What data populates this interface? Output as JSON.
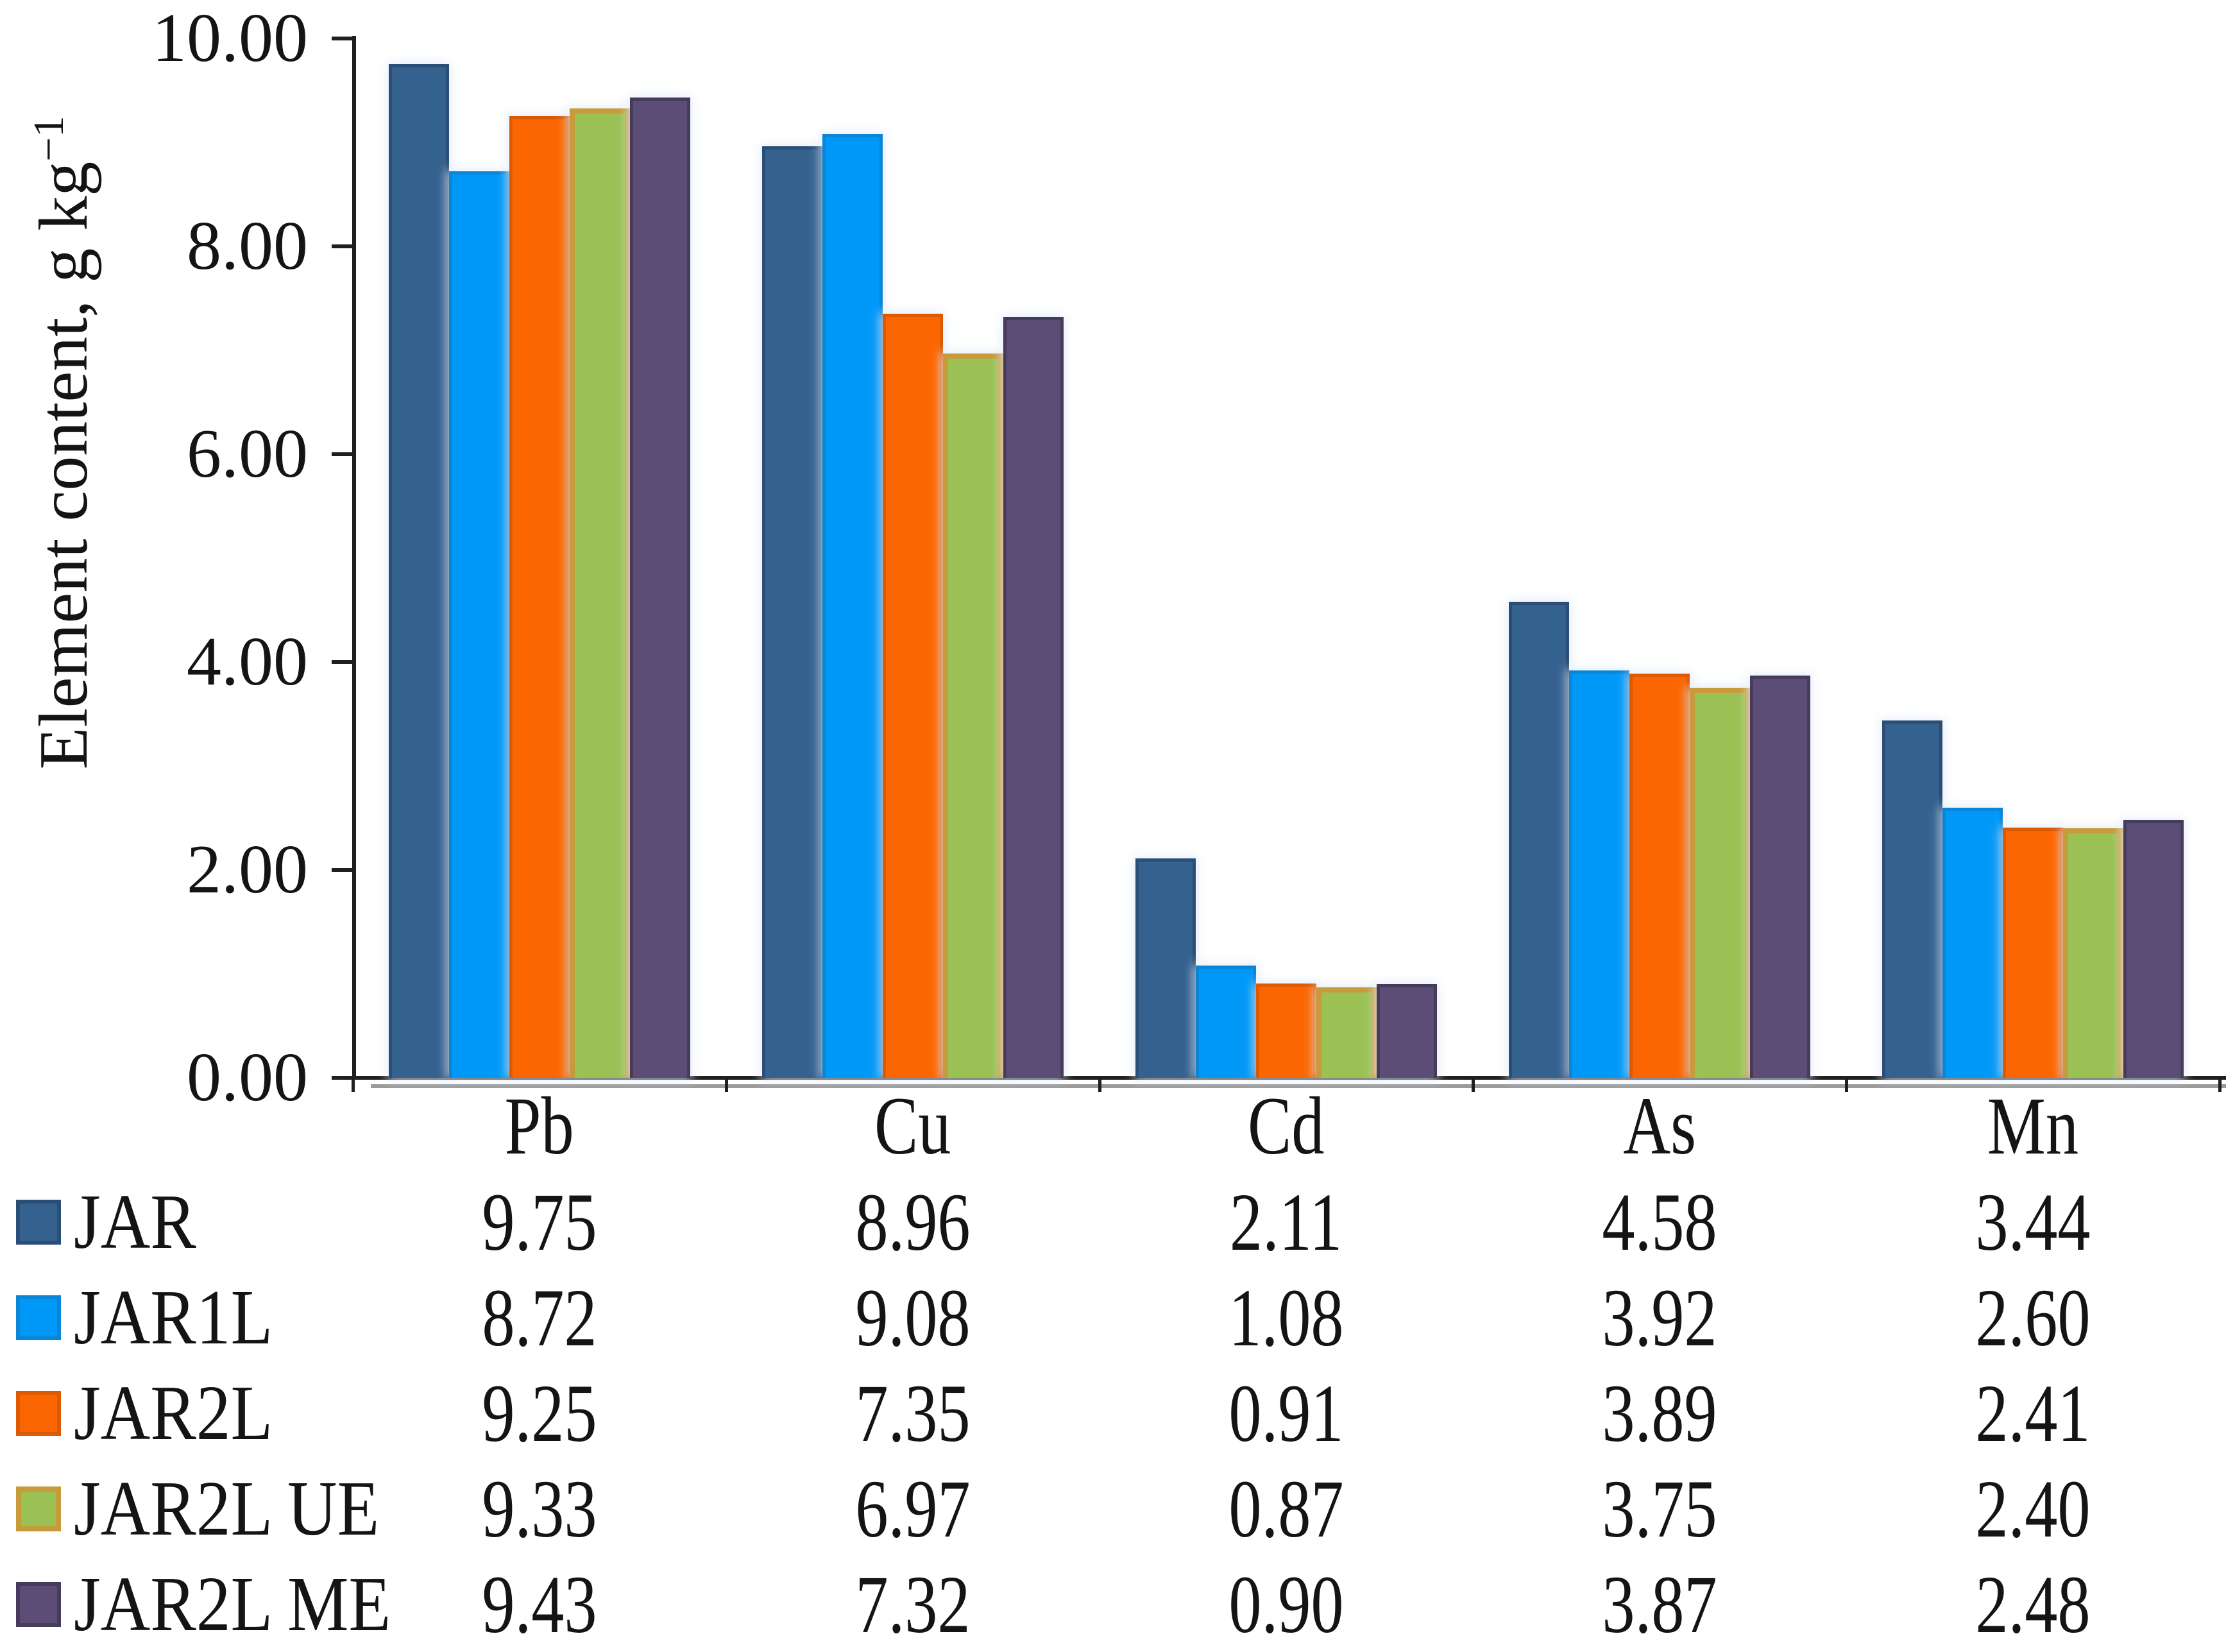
{
  "chart_data": {
    "type": "bar",
    "title": "",
    "y_axis_title": {
      "text": "Element content, g kg",
      "superscript": "−1"
    },
    "categories": [
      "Pb",
      "Cu",
      "Cd",
      "As",
      "Mn"
    ],
    "series": [
      {
        "name": "JAR",
        "fill": "#35618F",
        "border": "#2A4E75",
        "values": [
          9.75,
          8.96,
          2.11,
          4.58,
          3.44
        ],
        "display": [
          "9.75",
          "8.96",
          "2.11",
          "4.58",
          "3.44"
        ]
      },
      {
        "name": "JAR1L",
        "fill": "#0098F7",
        "border": "#0A85D8",
        "values": [
          8.72,
          9.08,
          1.08,
          3.92,
          2.6
        ],
        "display": [
          "8.72",
          "9.08",
          "1.08",
          "3.92",
          "2.60"
        ]
      },
      {
        "name": "JAR2L",
        "fill": "#FB6602",
        "border": "#DE5A02",
        "values": [
          9.25,
          7.35,
          0.91,
          3.89,
          2.41
        ],
        "display": [
          "9.25",
          "7.35",
          "0.91",
          "3.89",
          "2.41"
        ]
      },
      {
        "name": "JAR2L UE",
        "fill": "#9BC155",
        "border": "#C79A3B",
        "values": [
          9.33,
          6.97,
          0.87,
          3.75,
          2.4
        ],
        "display": [
          "9.33",
          "6.97",
          "0.87",
          "3.75",
          "2.40"
        ]
      },
      {
        "name": "JAR2L ME",
        "fill": "#5C4D76",
        "border": "#473B5D",
        "values": [
          9.43,
          7.32,
          0.9,
          3.87,
          2.48
        ],
        "display": [
          "9.43",
          "7.32",
          "0.90",
          "3.87",
          "2.48"
        ]
      }
    ],
    "y_axis": {
      "min": 0,
      "max": 10,
      "tick_step": 2,
      "tick_labels": [
        "0.00",
        "2.00",
        "4.00",
        "6.00",
        "8.00",
        "10.00"
      ]
    },
    "legend_position": "table-left",
    "grid": false,
    "colors": {
      "axis_line": "#1F1F1F",
      "axis_shadow": "#9B9B9B",
      "text": "#141414",
      "background": "#FFFFFF"
    }
  }
}
